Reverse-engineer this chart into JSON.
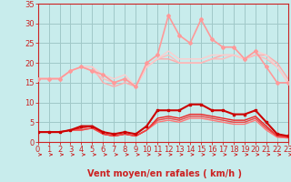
{
  "title": "",
  "xlabel": "Vent moyen/en rafales ( km/h )",
  "ylabel": "",
  "bg_color": "#c8ecec",
  "grid_color": "#a0c8c8",
  "x": [
    0,
    1,
    2,
    3,
    4,
    5,
    6,
    7,
    8,
    9,
    10,
    11,
    12,
    13,
    14,
    15,
    16,
    17,
    18,
    19,
    20,
    21,
    22,
    23
  ],
  "series": [
    {
      "y": [
        16,
        16,
        16,
        18,
        19,
        19,
        15,
        14,
        15,
        14,
        19,
        21,
        21,
        20,
        20,
        20,
        21,
        22,
        22,
        21,
        22,
        22,
        20,
        16
      ],
      "color": "#ffaaaa",
      "lw": 1.0,
      "marker": null,
      "zorder": 2
    },
    {
      "y": [
        16,
        16,
        16,
        18,
        19,
        18,
        16,
        15,
        16,
        14,
        19,
        21,
        22,
        20,
        20,
        20,
        21,
        21,
        22,
        21,
        22,
        21,
        19,
        15
      ],
      "color": "#ffbbbb",
      "lw": 1.0,
      "marker": null,
      "zorder": 2
    },
    {
      "y": [
        16,
        16,
        16,
        18,
        19,
        19,
        17,
        16,
        17,
        14,
        19,
        21,
        23,
        21,
        21,
        21,
        22,
        22,
        22,
        21,
        23,
        22,
        19,
        15
      ],
      "color": "#ffcccc",
      "lw": 1.0,
      "marker": null,
      "zorder": 2
    },
    {
      "y": [
        16,
        16,
        16,
        18,
        19,
        18,
        17,
        15,
        16,
        14,
        20,
        22,
        32,
        27,
        25,
        31,
        26,
        24,
        24,
        21,
        23,
        19,
        15,
        15
      ],
      "color": "#ff9999",
      "lw": 1.2,
      "marker": "D",
      "ms": 2.0,
      "zorder": 3
    },
    {
      "y": [
        2.5,
        2.5,
        2.5,
        3,
        4,
        4,
        2.5,
        2,
        2.5,
        2,
        4,
        8,
        8,
        8,
        9.5,
        9.5,
        8,
        8,
        7,
        7,
        8,
        5,
        2,
        1.5
      ],
      "color": "#cc0000",
      "lw": 1.5,
      "marker": "s",
      "ms": 2.0,
      "zorder": 4
    },
    {
      "y": [
        2.5,
        2.5,
        2.5,
        3,
        3.5,
        4,
        2,
        1.5,
        2,
        1.5,
        3,
        6,
        6.5,
        6,
        7,
        7,
        6.5,
        6,
        5.5,
        5.5,
        6.5,
        4,
        1.5,
        1.2
      ],
      "color": "#ee2222",
      "lw": 1.0,
      "marker": null,
      "zorder": 3
    },
    {
      "y": [
        2.5,
        2.5,
        2.5,
        3,
        3,
        3.5,
        2,
        1.5,
        2,
        1.5,
        3,
        5.5,
        6,
        5.5,
        6.5,
        6.5,
        6,
        5.5,
        5,
        5,
        6,
        3.5,
        1.5,
        1.2
      ],
      "color": "#ee4444",
      "lw": 1.0,
      "marker": null,
      "zorder": 3
    },
    {
      "y": [
        2.5,
        2.5,
        2.5,
        3,
        3,
        3.5,
        2,
        1.5,
        2,
        1.5,
        3,
        5,
        5.5,
        5,
        6,
        6,
        5.5,
        5,
        4.5,
        4.5,
        5.5,
        3,
        1.2,
        1.0
      ],
      "color": "#ff7777",
      "lw": 1.0,
      "marker": null,
      "zorder": 2
    }
  ],
  "ylim": [
    0,
    35
  ],
  "xlim": [
    0,
    23
  ],
  "yticks": [
    0,
    5,
    10,
    15,
    20,
    25,
    30,
    35
  ],
  "xticks": [
    0,
    1,
    2,
    3,
    4,
    5,
    6,
    7,
    8,
    9,
    10,
    11,
    12,
    13,
    14,
    15,
    16,
    17,
    18,
    19,
    20,
    21,
    22,
    23
  ],
  "arrow_color": "#cc2222",
  "axis_color": "#cc2222",
  "tick_color": "#cc2222",
  "label_color": "#cc2222",
  "xlabel_fontsize": 7,
  "tick_fontsize": 6
}
